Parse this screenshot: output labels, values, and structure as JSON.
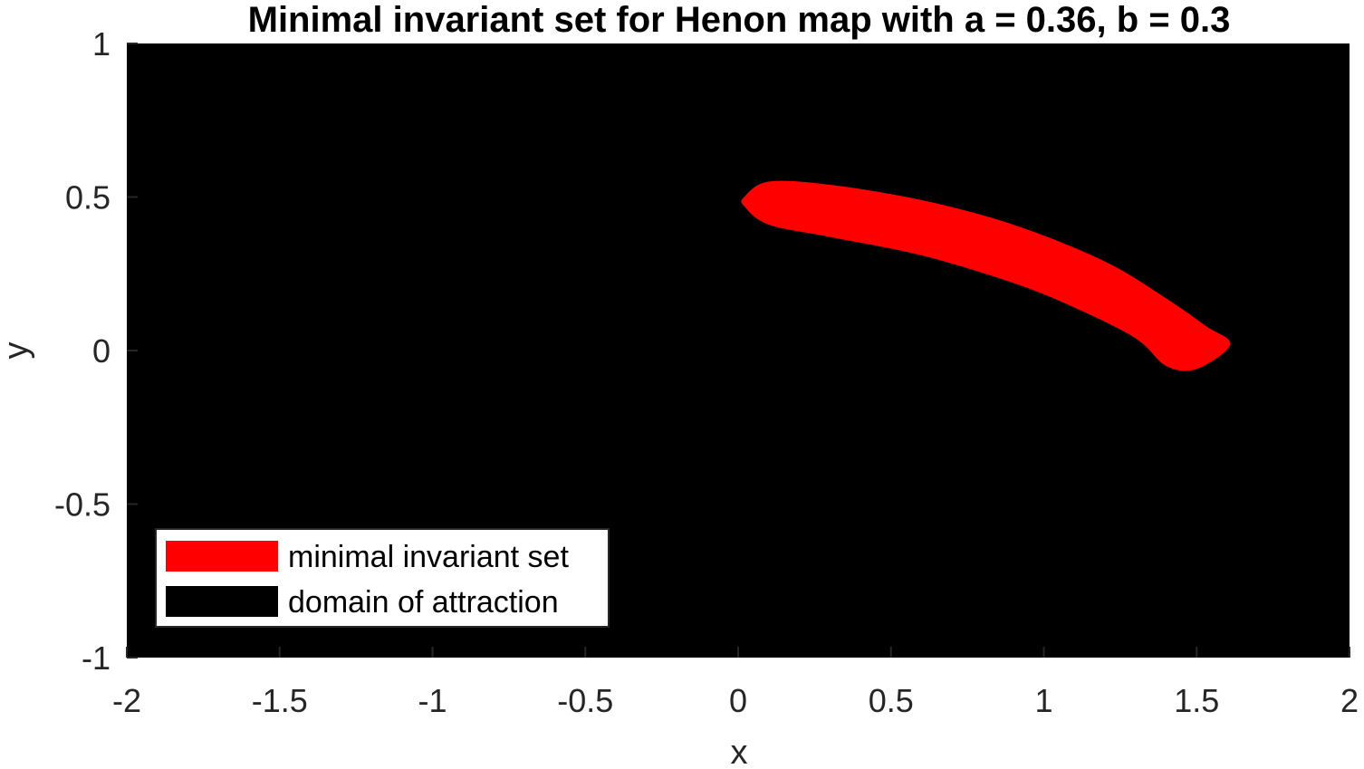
{
  "chart_data": {
    "type": "area",
    "title": "Minimal invariant set for Henon map with a = 0.36, b = 0.3",
    "xlabel": "x",
    "ylabel": "y",
    "xlim": [
      -2,
      2
    ],
    "ylim": [
      -1,
      1
    ],
    "x_ticks": [
      -2,
      -1.5,
      -1,
      -0.5,
      0,
      0.5,
      1,
      1.5,
      2
    ],
    "y_ticks": [
      -1,
      -0.5,
      0,
      0.5,
      1
    ],
    "x_tick_labels": [
      "-2",
      "-1.5",
      "-1",
      "-0.5",
      "0",
      "0.5",
      "1",
      "1.5",
      "2"
    ],
    "y_tick_labels": [
      "-1",
      "-0.5",
      "0",
      "0.5",
      "1"
    ],
    "grid": false,
    "legend_position": "bottom-left",
    "series": [
      {
        "name": "domain of attraction",
        "color": "#000000",
        "region": "full plot area"
      },
      {
        "name": "minimal invariant set",
        "color": "#ff0000",
        "upper_boundary": [
          [
            0.02,
            0.5
          ],
          [
            0.1,
            0.55
          ],
          [
            0.3,
            0.54
          ],
          [
            0.6,
            0.49
          ],
          [
            0.9,
            0.41
          ],
          [
            1.2,
            0.29
          ],
          [
            1.4,
            0.17
          ],
          [
            1.53,
            0.08
          ],
          [
            1.61,
            0.02
          ]
        ],
        "lower_boundary": [
          [
            0.02,
            0.47
          ],
          [
            0.1,
            0.41
          ],
          [
            0.3,
            0.37
          ],
          [
            0.6,
            0.31
          ],
          [
            0.9,
            0.22
          ],
          [
            1.1,
            0.14
          ],
          [
            1.3,
            0.04
          ],
          [
            1.4,
            -0.05
          ],
          [
            1.5,
            -0.06
          ],
          [
            1.61,
            0.02
          ]
        ]
      }
    ]
  }
}
